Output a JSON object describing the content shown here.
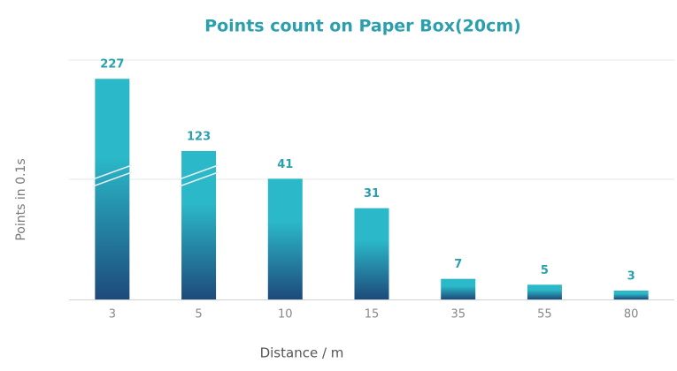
{
  "chart_data": {
    "type": "bar",
    "title": "Points count on Paper Box(20cm)",
    "x_label": "Distance / m",
    "y_label": "Points in 0.1s",
    "categories": [
      "3",
      "5",
      "10",
      "15",
      "35",
      "55",
      "80"
    ],
    "values": [
      227,
      123,
      41,
      31,
      7,
      5,
      3
    ],
    "color": [
      "#2bb9c9",
      "#1d4a7a"
    ],
    "ylim": [
      0,
      240
    ],
    "ybreak": [
      45,
      100
    ],
    "grid": true
  }
}
